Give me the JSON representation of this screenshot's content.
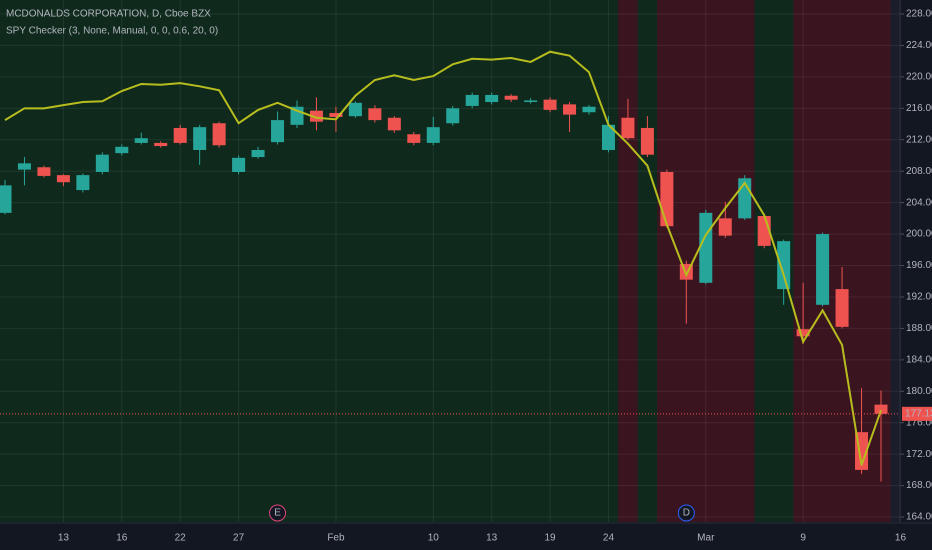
{
  "chart_data": {
    "type": "candlestick",
    "categories": [
      null,
      null,
      null,
      "13",
      null,
      null,
      "16",
      null,
      null,
      "22",
      null,
      null,
      "27",
      null,
      null,
      null,
      null,
      "Feb",
      null,
      null,
      null,
      null,
      "10",
      null,
      null,
      "13",
      null,
      null,
      "19",
      null,
      null,
      "24",
      null,
      null,
      null,
      null,
      "Mar",
      null,
      null,
      null,
      null,
      "9",
      null,
      null,
      null,
      null,
      "16"
    ],
    "series": [
      {
        "name": "MCDONALDS CORPORATION, D, Cboe BZX",
        "up_color": "#26a69a",
        "down_color": "#ef5350",
        "open": [
          202.7,
          208.2,
          208.5,
          207.5,
          205.6,
          207.9,
          210.3,
          211.6,
          211.6,
          213.5,
          210.7,
          214.1,
          207.9,
          209.8,
          211.7,
          213.9,
          215.7,
          215.4,
          215.0,
          216.0,
          214.8,
          212.7,
          211.6,
          214.1,
          216.3,
          216.8,
          217.6,
          216.8,
          217.1,
          216.5,
          215.5,
          210.7,
          214.8,
          213.5,
          207.9,
          196.2,
          193.8,
          202.0,
          202.0,
          202.3,
          193.0,
          187.9,
          191.0,
          193.0,
          174.8,
          178.3,
          null
        ],
        "high": [
          206.9,
          209.8,
          208.7,
          207.6,
          207.7,
          210.4,
          211.4,
          212.9,
          211.8,
          213.9,
          213.9,
          214.3,
          210.0,
          211.1,
          215.6,
          217.0,
          217.4,
          216.2,
          216.9,
          216.4,
          215.0,
          213.0,
          214.9,
          216.3,
          218.0,
          218.0,
          217.8,
          217.3,
          217.4,
          216.8,
          216.4,
          215.0,
          217.2,
          215.0,
          208.2,
          196.6,
          203.1,
          204.1,
          207.5,
          202.6,
          199.3,
          193.8,
          200.2,
          195.8,
          180.4,
          180.1,
          null
        ],
        "low": [
          202.5,
          206.2,
          207.2,
          206.1,
          205.3,
          207.6,
          210.0,
          211.4,
          211.0,
          211.4,
          208.8,
          211.0,
          207.6,
          209.6,
          211.4,
          213.5,
          213.2,
          213.0,
          214.8,
          214.2,
          212.9,
          211.3,
          211.3,
          213.8,
          216.0,
          216.5,
          216.8,
          216.6,
          215.5,
          213.0,
          215.2,
          210.4,
          212.0,
          209.8,
          200.8,
          188.6,
          193.6,
          199.5,
          201.8,
          198.2,
          191.0,
          186.0,
          190.8,
          188.0,
          169.5,
          168.5,
          null
        ],
        "close": [
          206.2,
          209.0,
          207.4,
          206.6,
          207.5,
          210.1,
          211.1,
          212.2,
          211.2,
          211.6,
          213.6,
          211.3,
          209.7,
          210.7,
          214.5,
          216.2,
          214.3,
          214.9,
          216.7,
          214.5,
          213.2,
          211.6,
          213.6,
          216.0,
          217.7,
          217.7,
          217.1,
          217.0,
          215.8,
          215.2,
          216.2,
          213.9,
          212.2,
          210.1,
          201.0,
          194.2,
          202.7,
          199.8,
          207.1,
          198.5,
          199.1,
          187.0,
          200.0,
          188.2,
          170.0,
          177.13,
          null
        ]
      },
      {
        "name": "SPY Checker (3, None, Manual, 0, 0, 0.6, 20, 0)",
        "color": "#b8bd1e",
        "values": [
          214.5,
          216.0,
          216.0,
          216.4,
          216.8,
          216.9,
          218.2,
          219.1,
          219.0,
          219.2,
          218.8,
          218.3,
          214.1,
          215.8,
          216.7,
          215.7,
          214.8,
          214.6,
          217.6,
          219.6,
          220.2,
          219.6,
          220.1,
          221.6,
          222.3,
          222.2,
          222.4,
          221.9,
          223.2,
          222.7,
          220.6,
          213.9,
          211.5,
          208.7,
          201.2,
          194.8,
          199.9,
          203.3,
          206.5,
          202.4,
          194.8,
          186.3,
          190.3,
          185.9,
          170.6,
          177.6,
          null
        ]
      }
    ],
    "background": {
      "color": "#0f2a1d",
      "highlight_color": "#3a1520",
      "highlight_ranges": [
        [
          32,
          32
        ],
        [
          34,
          38
        ],
        [
          41,
          45
        ]
      ]
    },
    "last_price": 177.13,
    "events": [
      {
        "index": 14,
        "label": "E",
        "color": "#e0467c"
      },
      {
        "index": 35,
        "label": "D",
        "color": "#2962ff"
      }
    ],
    "ylim": [
      163.37,
      229.78
    ],
    "yticks": [
      {
        "value": 164,
        "label": "164.00"
      },
      {
        "value": 168,
        "label": "168.00"
      },
      {
        "value": 172,
        "label": "172.00"
      },
      {
        "value": 176,
        "label": "176.00"
      },
      {
        "value": 180,
        "label": "180.00"
      },
      {
        "value": 184,
        "label": "184.00"
      },
      {
        "value": 188,
        "label": "188.00"
      },
      {
        "value": 192,
        "label": "192.00"
      },
      {
        "value": 196,
        "label": "196.00"
      },
      {
        "value": 200,
        "label": "200.00"
      },
      {
        "value": 204,
        "label": "204.00"
      },
      {
        "value": 208,
        "label": "208.00"
      },
      {
        "value": 212,
        "label": "212.00"
      },
      {
        "value": 216,
        "label": "216.00"
      },
      {
        "value": 220,
        "label": "220.00"
      },
      {
        "value": 224,
        "label": "224.00"
      },
      {
        "value": 228,
        "label": "228.00"
      }
    ],
    "grid": true
  }
}
